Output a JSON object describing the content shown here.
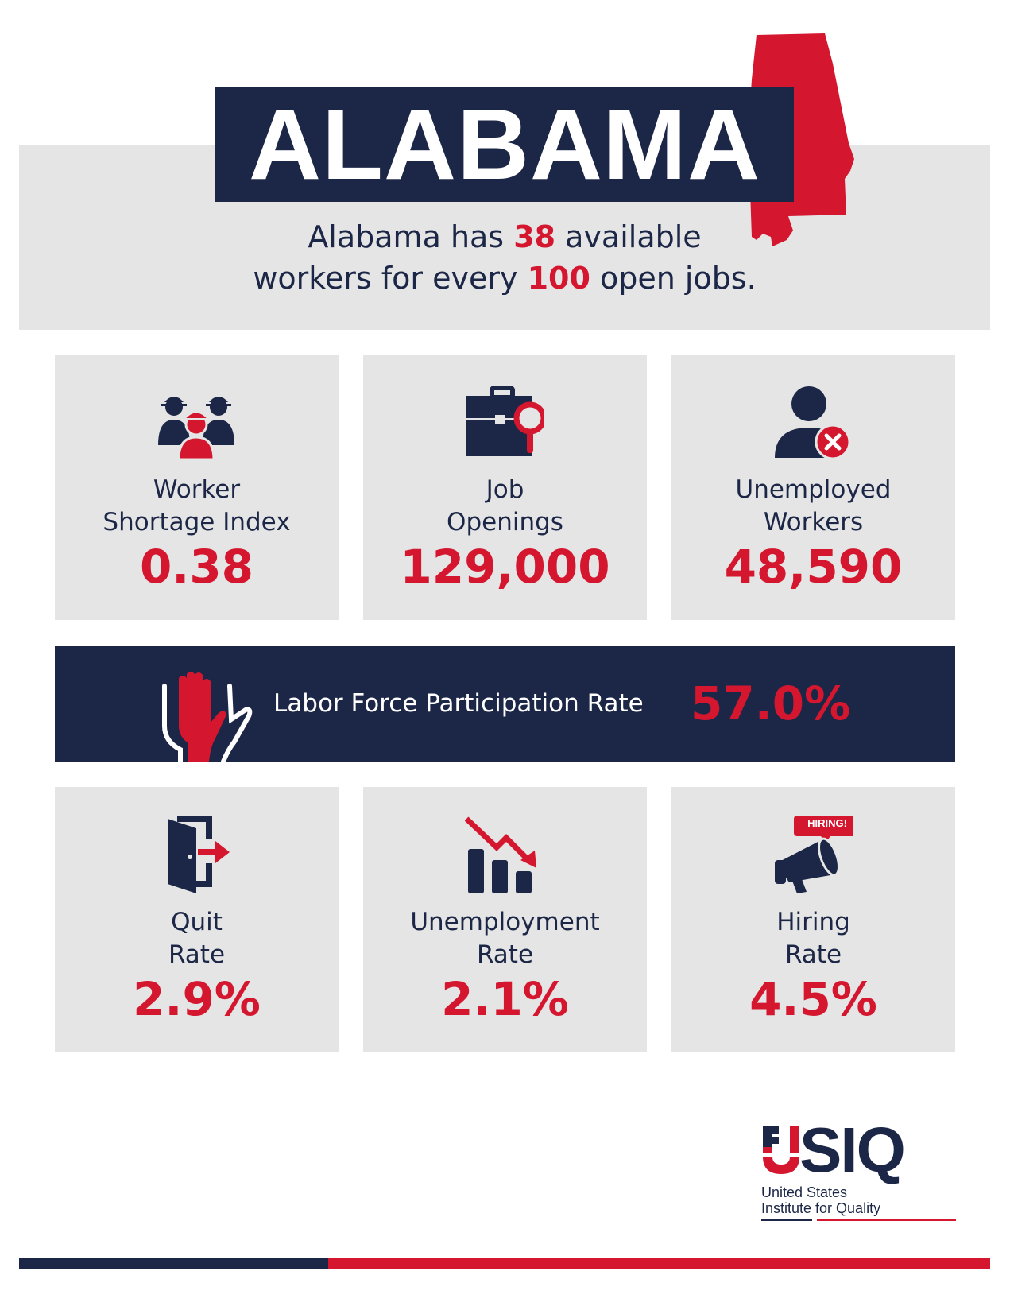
{
  "header": {
    "title": "ALABAMA",
    "subtitle_line1_pre": "Alabama has ",
    "subtitle_num1": "38",
    "subtitle_line1_post": " available",
    "subtitle_line2_pre": "workers for every ",
    "subtitle_num2": "100",
    "subtitle_line2_post": " open jobs."
  },
  "stats_top": [
    {
      "label_line1": "Worker",
      "label_line2": "Shortage Index",
      "value": "0.38",
      "icon": "workers-group-icon"
    },
    {
      "label_line1": "Job",
      "label_line2": "Openings",
      "value": "129,000",
      "icon": "briefcase-search-icon"
    },
    {
      "label_line1": "Unemployed",
      "label_line2": "Workers",
      "value": "48,590",
      "icon": "user-remove-icon"
    }
  ],
  "lfpr": {
    "label": "Labor Force Participation Rate",
    "value": "57.0%",
    "icon": "raised-hands-icon"
  },
  "stats_bottom": [
    {
      "label_line1": "Quit",
      "label_line2": "Rate",
      "value": "2.9%",
      "icon": "exit-door-icon"
    },
    {
      "label_line1": "Unemployment",
      "label_line2": "Rate",
      "value": "2.1%",
      "icon": "chart-down-icon"
    },
    {
      "label_line1": "Hiring",
      "label_line2": "Rate",
      "value": "4.5%",
      "icon": "megaphone-icon",
      "badge": "HIRING!"
    }
  ],
  "logo": {
    "letters": "SIQ",
    "line1": "United States",
    "line2": "Institute for Quality"
  },
  "colors": {
    "navy": "#1c2747",
    "red": "#d4172f",
    "gray": "#e5e5e5"
  }
}
